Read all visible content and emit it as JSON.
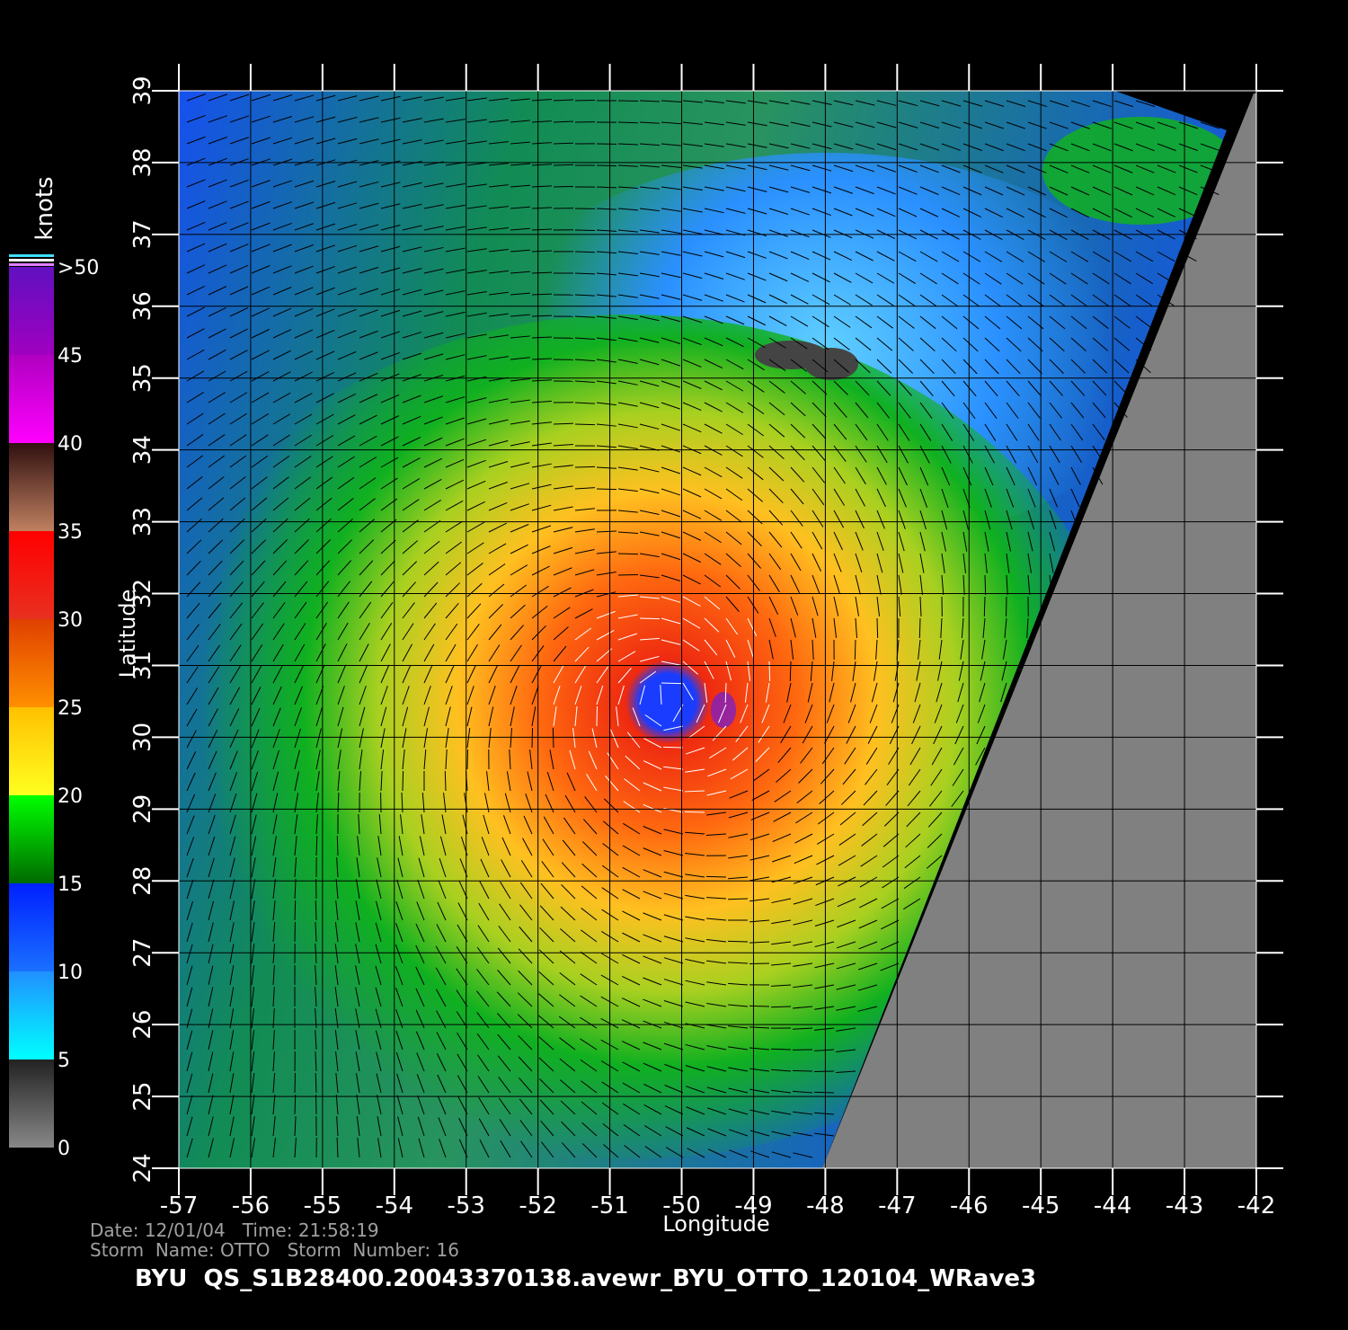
{
  "map": {
    "xlim": [
      -57,
      -42
    ],
    "ylim": [
      24,
      39
    ],
    "xticks": [
      -57,
      -56,
      -55,
      -54,
      -53,
      -52,
      -51,
      -50,
      -49,
      -48,
      -47,
      -46,
      -45,
      -44,
      -43,
      -42
    ],
    "yticks": [
      24,
      25,
      26,
      27,
      28,
      29,
      30,
      31,
      32,
      33,
      34,
      35,
      36,
      37,
      38,
      39
    ],
    "x_label": "Longitude",
    "y_label": "Latitude"
  },
  "colorbar": {
    "title": "knots",
    "ticks": [
      0,
      5,
      10,
      15,
      20,
      25,
      30,
      35,
      40,
      45,
      {
        "value": 50,
        "label": ">50"
      }
    ]
  },
  "footer": {
    "date_line": "Date: 12/01/04   Time: 21:58:19",
    "storm_line": "Storm  Name: OTTO   Storm  Number: 16",
    "title": "BYU  QS_S1B28400.20043370138.avewr_BYU_OTTO_120104_WRave3"
  }
}
